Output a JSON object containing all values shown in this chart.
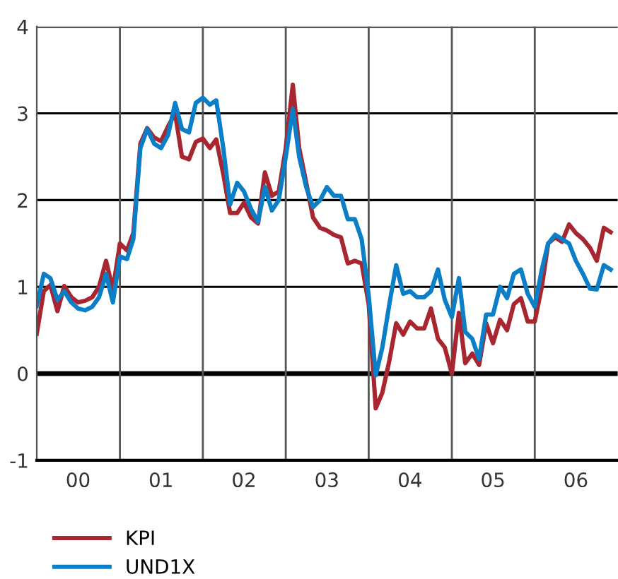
{
  "chart_data": {
    "type": "line",
    "x": [
      "2000-01",
      "2000-02",
      "2000-03",
      "2000-04",
      "2000-05",
      "2000-06",
      "2000-07",
      "2000-08",
      "2000-09",
      "2000-10",
      "2000-11",
      "2000-12",
      "2001-01",
      "2001-02",
      "2001-03",
      "2001-04",
      "2001-05",
      "2001-06",
      "2001-07",
      "2001-08",
      "2001-09",
      "2001-10",
      "2001-11",
      "2001-12",
      "2002-01",
      "2002-02",
      "2002-03",
      "2002-04",
      "2002-05",
      "2002-06",
      "2002-07",
      "2002-08",
      "2002-09",
      "2002-10",
      "2002-11",
      "2002-12",
      "2003-01",
      "2003-02",
      "2003-03",
      "2003-04",
      "2003-05",
      "2003-06",
      "2003-07",
      "2003-08",
      "2003-09",
      "2003-10",
      "2003-11",
      "2003-12",
      "2004-01",
      "2004-02",
      "2004-03",
      "2004-04",
      "2004-05",
      "2004-06",
      "2004-07",
      "2004-08",
      "2004-09",
      "2004-10",
      "2004-11",
      "2004-12",
      "2005-01",
      "2005-02",
      "2005-03",
      "2005-04",
      "2005-05",
      "2005-06",
      "2005-07",
      "2005-08",
      "2005-09",
      "2005-10",
      "2005-11",
      "2005-12",
      "2006-01",
      "2006-02",
      "2006-03",
      "2006-04",
      "2006-05",
      "2006-06",
      "2006-07",
      "2006-08",
      "2006-09",
      "2006-10",
      "2006-11",
      "2006-12"
    ],
    "series": [
      {
        "name": "KPI",
        "color": "#a8262f",
        "values": [
          0.46,
          0.95,
          1.02,
          0.72,
          1.01,
          0.88,
          0.82,
          0.84,
          0.88,
          1.0,
          1.3,
          0.97,
          1.5,
          1.42,
          1.62,
          2.65,
          2.83,
          2.72,
          2.68,
          2.85,
          3.0,
          2.5,
          2.47,
          2.67,
          2.71,
          2.6,
          2.7,
          2.3,
          1.85,
          1.85,
          1.97,
          1.8,
          1.73,
          2.32,
          2.05,
          2.1,
          2.6,
          3.33,
          2.6,
          2.2,
          1.8,
          1.68,
          1.65,
          1.6,
          1.57,
          1.27,
          1.3,
          1.27,
          0.8,
          -0.4,
          -0.22,
          0.15,
          0.58,
          0.45,
          0.6,
          0.52,
          0.52,
          0.75,
          0.4,
          0.3,
          0.0,
          0.7,
          0.12,
          0.23,
          0.1,
          0.58,
          0.35,
          0.62,
          0.5,
          0.8,
          0.87,
          0.6,
          0.6,
          1.0,
          1.5,
          1.57,
          1.52,
          1.72,
          1.62,
          1.55,
          1.45,
          1.3,
          1.68,
          1.63
        ]
      },
      {
        "name": "UND1X",
        "color": "#0a7fc8",
        "values": [
          0.78,
          1.15,
          1.1,
          0.85,
          0.95,
          0.82,
          0.75,
          0.73,
          0.77,
          0.88,
          1.15,
          0.82,
          1.35,
          1.32,
          1.55,
          2.6,
          2.82,
          2.65,
          2.6,
          2.75,
          3.12,
          2.82,
          2.78,
          3.12,
          3.18,
          3.1,
          3.15,
          2.6,
          1.95,
          2.2,
          2.1,
          1.9,
          1.75,
          2.15,
          1.88,
          2.0,
          2.5,
          3.05,
          2.5,
          2.15,
          1.92,
          2.0,
          2.15,
          2.05,
          2.05,
          1.78,
          1.78,
          1.55,
          0.9,
          -0.02,
          0.3,
          0.8,
          1.25,
          0.92,
          0.95,
          0.88,
          0.88,
          0.95,
          1.2,
          0.85,
          0.65,
          1.1,
          0.48,
          0.4,
          0.17,
          0.68,
          0.68,
          1.0,
          0.87,
          1.15,
          1.2,
          0.92,
          0.77,
          1.2,
          1.5,
          1.6,
          1.55,
          1.5,
          1.3,
          1.15,
          0.98,
          0.97,
          1.25,
          1.2
        ]
      }
    ],
    "xlim": [
      "2000-01",
      "2007-01"
    ],
    "xticks": [
      {
        "value": "2000-07",
        "label": "00"
      },
      {
        "value": "2001-07",
        "label": "01"
      },
      {
        "value": "2002-07",
        "label": "02"
      },
      {
        "value": "2003-07",
        "label": "03"
      },
      {
        "value": "2004-07",
        "label": "04"
      },
      {
        "value": "2005-07",
        "label": "05"
      },
      {
        "value": "2006-07",
        "label": "06"
      }
    ],
    "ylim": [
      -1,
      4
    ],
    "yticks": [
      -1,
      0,
      1,
      2,
      3,
      4
    ],
    "ref_lines": [
      {
        "axis": "x",
        "value": "2001-01",
        "color": "#555555"
      },
      {
        "axis": "x",
        "value": "2002-01",
        "color": "#555555"
      },
      {
        "axis": "x",
        "value": "2003-01",
        "color": "#555555"
      },
      {
        "axis": "x",
        "value": "2004-01",
        "color": "#555555"
      },
      {
        "axis": "x",
        "value": "2005-01",
        "color": "#555555"
      },
      {
        "axis": "x",
        "value": "2006-01",
        "color": "#555555"
      }
    ],
    "grid": "y",
    "legend": "bottom",
    "line_style": "solid",
    "marker": "none"
  }
}
